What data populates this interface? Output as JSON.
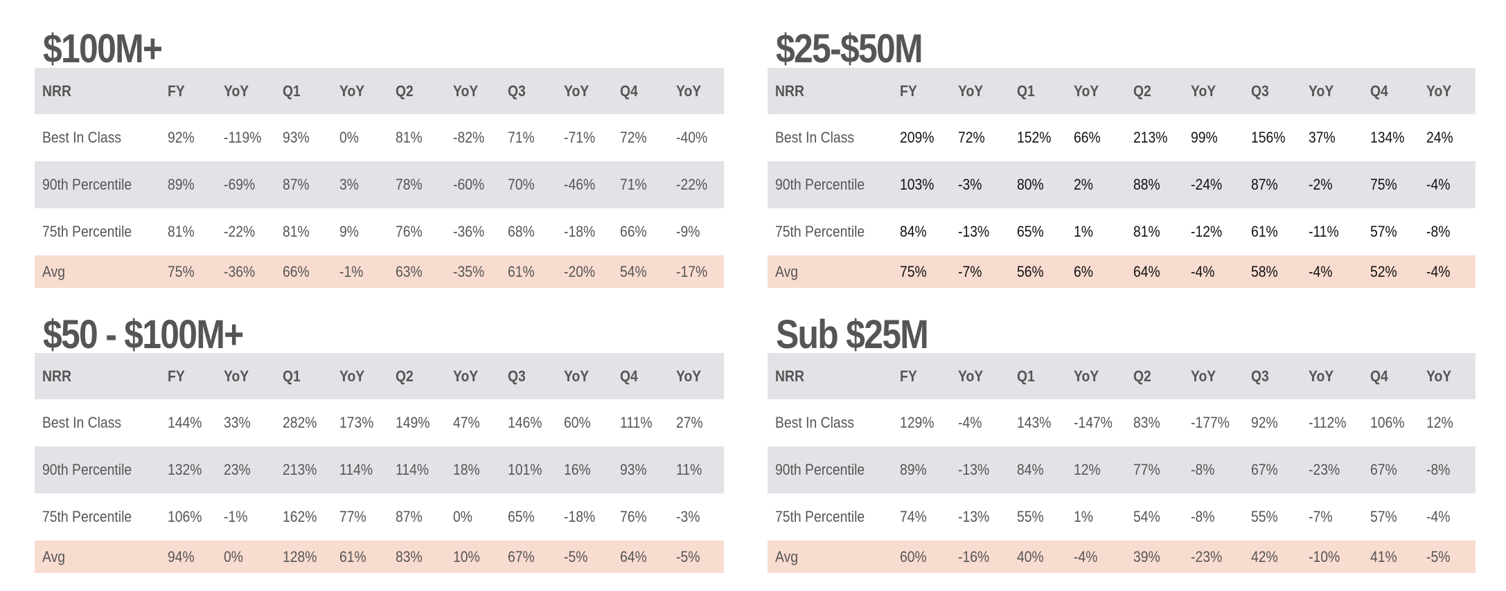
{
  "colors": {
    "text": "#555555",
    "header_bg": "#e4e2e6",
    "alt_row_bg": "#e4e2e6",
    "avg_row_bg": "#f9dcd0",
    "dark_value_text": "#111111"
  },
  "columns": [
    "NRR",
    "FY",
    "YoY",
    "Q1",
    "YoY",
    "Q2",
    "YoY",
    "Q3",
    "YoY",
    "Q4",
    "YoY"
  ],
  "tables": [
    {
      "title": "$100M+",
      "rows": [
        {
          "label": "Best In Class",
          "values": [
            "92%",
            "-119%",
            "93%",
            "0%",
            "81%",
            "-82%",
            "71%",
            "-71%",
            "72%",
            "-40%"
          ]
        },
        {
          "label": "90th Percentile",
          "values": [
            "89%",
            "-69%",
            "87%",
            "3%",
            "78%",
            "-60%",
            "70%",
            "-46%",
            "71%",
            "-22%"
          ]
        },
        {
          "label": "75th Percentile",
          "values": [
            "81%",
            "-22%",
            "81%",
            "9%",
            "76%",
            "-36%",
            "68%",
            "-18%",
            "66%",
            "-9%"
          ]
        },
        {
          "label": "Avg",
          "values": [
            "75%",
            "-36%",
            "66%",
            "-1%",
            "63%",
            "-35%",
            "61%",
            "-20%",
            "54%",
            "-17%"
          ]
        }
      ]
    },
    {
      "title": "$25-$50M",
      "rows": [
        {
          "label": "Best In Class",
          "values": [
            "209%",
            "72%",
            "152%",
            "66%",
            "213%",
            "99%",
            "156%",
            "37%",
            "134%",
            "24%"
          ]
        },
        {
          "label": "90th Percentile",
          "values": [
            "103%",
            "-3%",
            "80%",
            "2%",
            "88%",
            "-24%",
            "87%",
            "-2%",
            "75%",
            "-4%"
          ]
        },
        {
          "label": "75th Percentile",
          "values": [
            "84%",
            "-13%",
            "65%",
            "1%",
            "81%",
            "-12%",
            "61%",
            "-11%",
            "57%",
            "-8%"
          ]
        },
        {
          "label": "Avg",
          "values": [
            "75%",
            "-7%",
            "56%",
            "6%",
            "64%",
            "-4%",
            "58%",
            "-4%",
            "52%",
            "-4%"
          ]
        }
      ]
    },
    {
      "title": "$50 - $100M+",
      "rows": [
        {
          "label": "Best In Class",
          "values": [
            "144%",
            "33%",
            "282%",
            "173%",
            "149%",
            "47%",
            "146%",
            "60%",
            "111%",
            "27%"
          ]
        },
        {
          "label": "90th Percentile",
          "values": [
            "132%",
            "23%",
            "213%",
            "114%",
            "114%",
            "18%",
            "101%",
            "16%",
            "93%",
            "11%"
          ]
        },
        {
          "label": "75th Percentile",
          "values": [
            "106%",
            "-1%",
            "162%",
            "77%",
            "87%",
            "0%",
            "65%",
            "-18%",
            "76%",
            "-3%"
          ]
        },
        {
          "label": "Avg",
          "values": [
            "94%",
            "0%",
            "128%",
            "61%",
            "83%",
            "10%",
            "67%",
            "-5%",
            "64%",
            "-5%"
          ]
        }
      ]
    },
    {
      "title": "Sub $25M",
      "rows": [
        {
          "label": "Best In Class",
          "values": [
            "129%",
            "-4%",
            "143%",
            "-147%",
            "83%",
            "-177%",
            "92%",
            "-112%",
            "106%",
            "12%"
          ]
        },
        {
          "label": "90th Percentile",
          "values": [
            "89%",
            "-13%",
            "84%",
            "12%",
            "77%",
            "-8%",
            "67%",
            "-23%",
            "67%",
            "-8%"
          ]
        },
        {
          "label": "75th Percentile",
          "values": [
            "74%",
            "-13%",
            "55%",
            "1%",
            "54%",
            "-8%",
            "55%",
            "-7%",
            "57%",
            "-4%"
          ]
        },
        {
          "label": "Avg",
          "values": [
            "60%",
            "-16%",
            "40%",
            "-4%",
            "39%",
            "-23%",
            "42%",
            "-10%",
            "41%",
            "-5%"
          ]
        }
      ]
    }
  ]
}
